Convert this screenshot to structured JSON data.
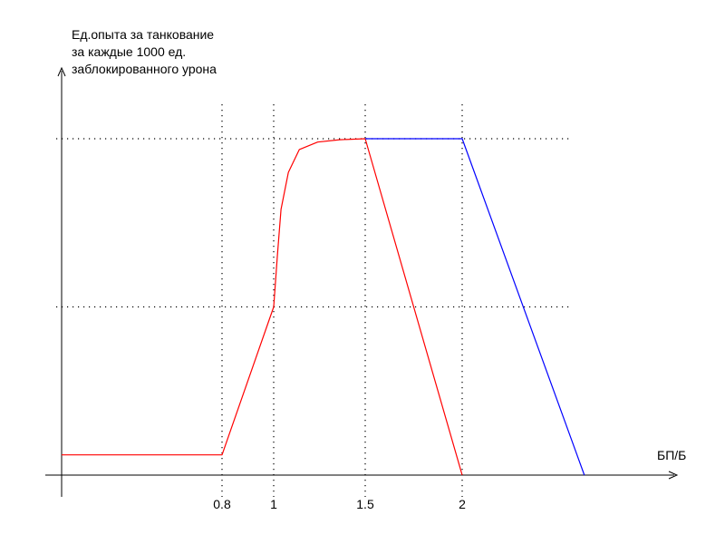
{
  "chart_data": {
    "type": "line",
    "title": "",
    "ylabel_lines": [
      "Ед.опыта за танкование",
      "за каждые 1000 ед.",
      "заблокированного урона"
    ],
    "xlabel": "БП/Б",
    "x_ticks": [
      0.8,
      1,
      1.5,
      2
    ],
    "x_tick_labels": [
      "0.8",
      "1",
      "1.5",
      "2"
    ],
    "y_reference_levels": [
      0.5,
      1.0
    ],
    "grid": "dotted reference lines at ticks and levels",
    "y_scale_note": "no y tick labels",
    "series": [
      {
        "color": "#ff0000",
        "points": [
          [
            0,
            0.06
          ],
          [
            0.8,
            0.06
          ],
          [
            1,
            0.5
          ],
          [
            1.02,
            0.65
          ],
          [
            1.04,
            0.79
          ],
          [
            1.08,
            0.9
          ],
          [
            1.14,
            0.968
          ],
          [
            1.24,
            0.99
          ],
          [
            1.36,
            0.997
          ],
          [
            1.5,
            1.0
          ],
          [
            2,
            0
          ]
        ]
      },
      {
        "color": "#0000ff",
        "points": [
          [
            1.5,
            1.0
          ],
          [
            2,
            1.0
          ],
          [
            2.63,
            0
          ]
        ]
      }
    ]
  }
}
